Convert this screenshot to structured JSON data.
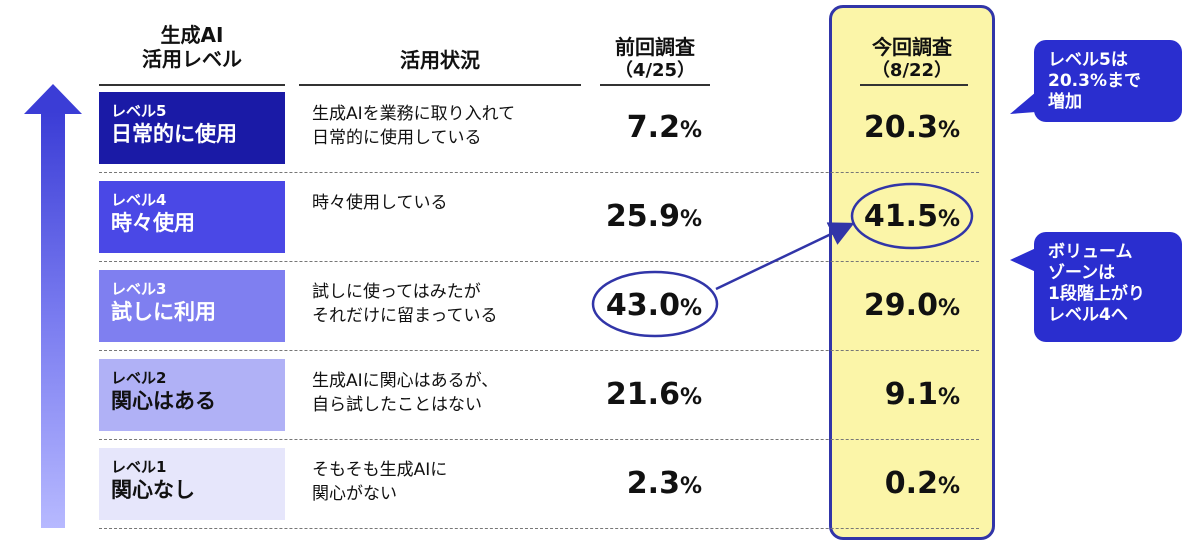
{
  "header": {
    "level_col": "生成AI\n活用レベル",
    "status_col": "活用状況",
    "prev_col": "前回調査",
    "prev_date": "（4/25）",
    "curr_col": "今回調査",
    "curr_date": "（8/22）"
  },
  "levels": [
    {
      "no": "レベル5",
      "name": "日常的に使用",
      "desc": "生成AIを業務に取り入れて\n日常的に使用している",
      "prev": "7.2",
      "curr": "20.3",
      "color": "#1a1aa6",
      "text_color": "#ffffff"
    },
    {
      "no": "レベル4",
      "name": "時々使用",
      "desc": "時々使用している",
      "prev": "25.9",
      "curr": "41.5",
      "color": "#4a48e6",
      "text_color": "#ffffff"
    },
    {
      "no": "レベル3",
      "name": "試しに利用",
      "desc": "試しに使ってはみたが\nそれだけに留まっている",
      "prev": "43.0",
      "curr": "29.0",
      "color": "#7f7ff0",
      "text_color": "#ffffff"
    },
    {
      "no": "レベル2",
      "name": "関心はある",
      "desc": "生成AIに関心はあるが、\n自ら試したことはない",
      "prev": "21.6",
      "curr": "9.1",
      "color": "#b0b1f6",
      "text_color": "#111111"
    },
    {
      "no": "レベル1",
      "name": "関心なし",
      "desc": "そもそも生成AIに\n関心がない",
      "prev": "2.3",
      "curr": "0.2",
      "color": "#e6e6fb",
      "text_color": "#111111"
    }
  ],
  "pct_sign": "%",
  "callouts": {
    "top": "レベル5は\n20.3%まで\n増加",
    "mid": "ボリューム\nゾーンは\n1段階上がり\nレベル4へ"
  },
  "colors": {
    "highlight_bg": "#fbf5a8",
    "highlight_border": "#3135a8",
    "callout_bg": "#2a2ecf"
  },
  "chart_data": {
    "type": "table",
    "categories": [
      "レベル5 日常的に使用",
      "レベル4 時々使用",
      "レベル3 試しに利用",
      "レベル2 関心はある",
      "レベル1 関心なし"
    ],
    "series": [
      {
        "name": "前回調査（4/25）",
        "values": [
          7.2,
          25.9,
          43.0,
          21.6,
          2.3
        ]
      },
      {
        "name": "今回調査（8/22）",
        "values": [
          20.3,
          41.5,
          29.0,
          9.1,
          0.2
        ]
      }
    ],
    "unit": "%"
  }
}
